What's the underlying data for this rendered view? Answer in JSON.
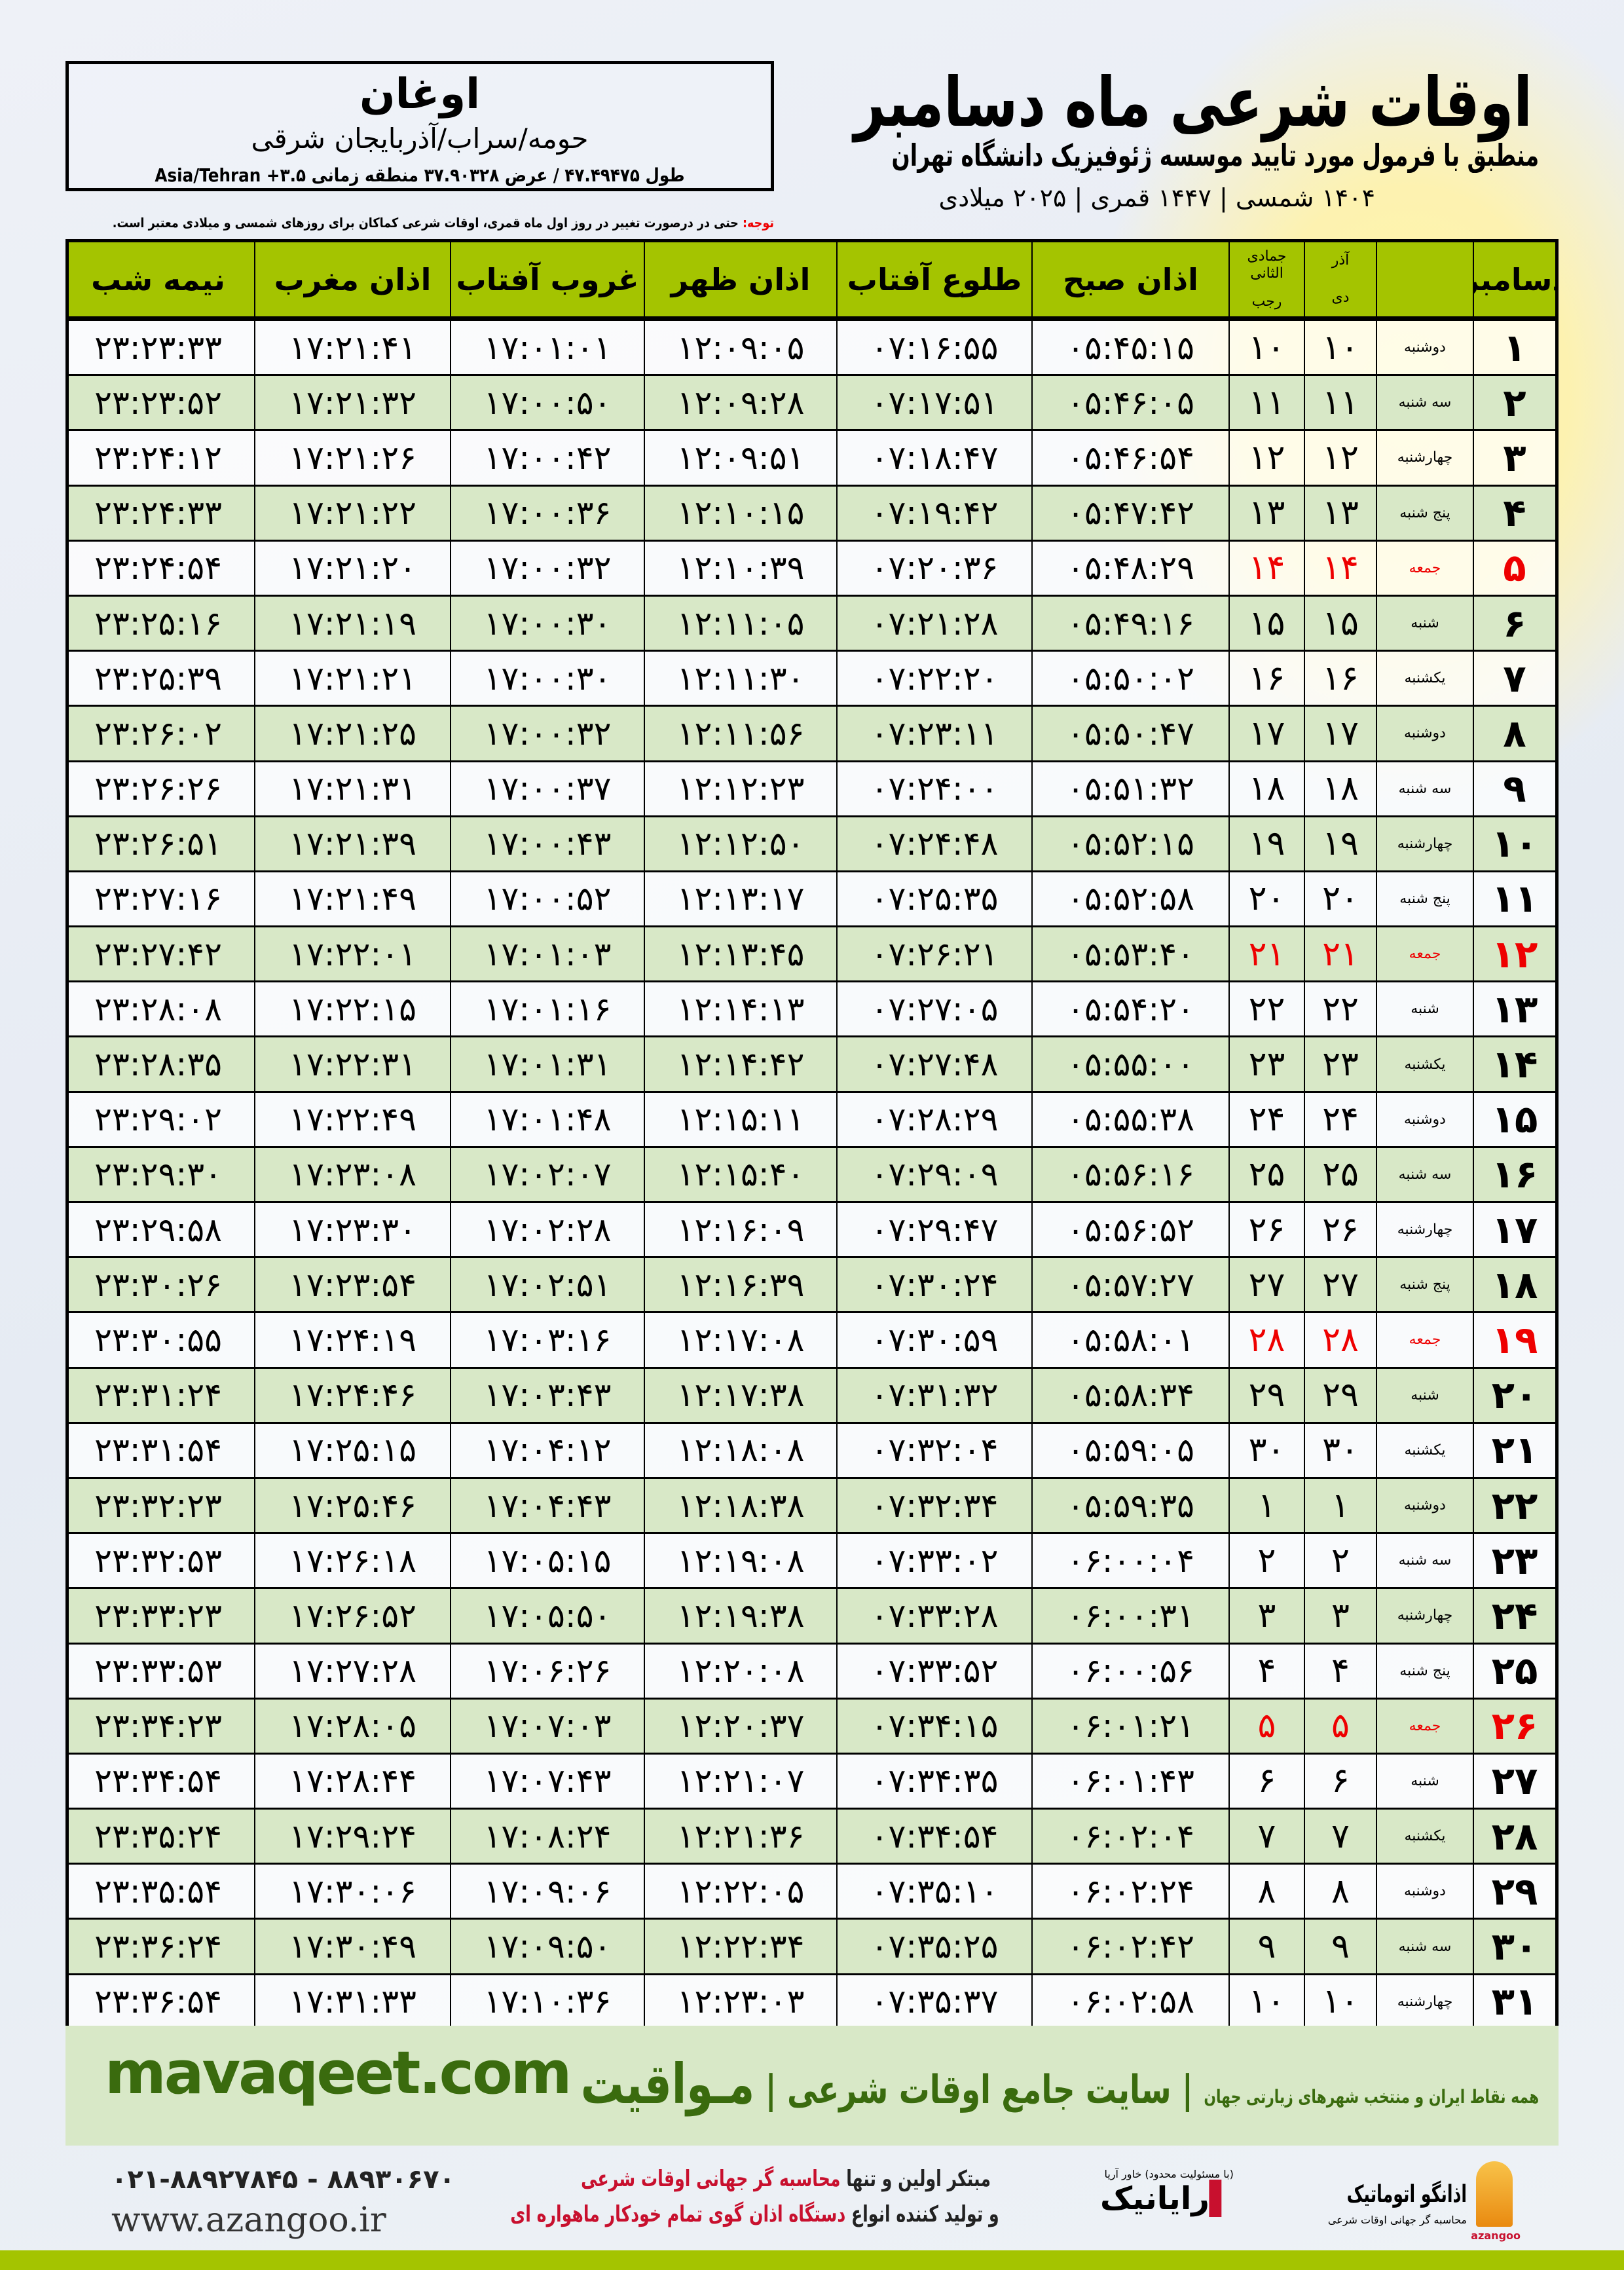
{
  "location": {
    "name": "اوغان",
    "region": "حومه/سراب/آذربایجان شرقی",
    "coords": "طول ۴۷.۴۹۴۷۵ / عرض ۳۷.۹۰۳۲۸ منطقه زمانی Asia/Tehran +۳.۵"
  },
  "header": {
    "title": "اوقات شرعی ماه دسامبر",
    "subtitle": "منطبق با فرمول مورد تایید موسسه ژئوفیزیک دانشگاه تهران",
    "dates": "۱۴۰۴ شمسی | ۱۴۴۷ قمری | ۲۰۲۵ میلادی",
    "note_label": "توجه:",
    "note": " حتی در درصورت تغییر در روز اول ماه قمری، اوقات شرعی کماکان برای روزهای شمسی و میلادی معتبر است."
  },
  "colors": {
    "header_green": "#a4c400",
    "row_green": "#d8e8c7",
    "friday": "#e00000",
    "brand_green": "#3a6b0e"
  },
  "table": {
    "columns": {
      "day": "دسامبر",
      "solar_top": "آذر",
      "solar_bottom": "دی",
      "lunar_top": "جمادی الثانی",
      "lunar_bottom": "رجب",
      "fajr": "اذان صبح",
      "sunrise": "طلوع آفتاب",
      "dhuhr": "اذان ظهر",
      "sunset": "غروب آفتاب",
      "maghrib": "اذان مغرب",
      "midnight": "نیمه شب"
    },
    "rows": [
      {
        "day": "۱",
        "weekday": "دوشنبه",
        "solar": "۱۰",
        "lunar": "۱۰",
        "fajr": "۰۵:۴۵:۱۵",
        "sunrise": "۰۷:۱۶:۵۵",
        "dhuhr": "۱۲:۰۹:۰۵",
        "sunset": "۱۷:۰۱:۰۱",
        "maghrib": "۱۷:۲۱:۴۱",
        "midnight": "۲۳:۲۳:۳۳"
      },
      {
        "day": "۲",
        "weekday": "سه شنبه",
        "solar": "۱۱",
        "lunar": "۱۱",
        "fajr": "۰۵:۴۶:۰۵",
        "sunrise": "۰۷:۱۷:۵۱",
        "dhuhr": "۱۲:۰۹:۲۸",
        "sunset": "۱۷:۰۰:۵۰",
        "maghrib": "۱۷:۲۱:۳۲",
        "midnight": "۲۳:۲۳:۵۲"
      },
      {
        "day": "۳",
        "weekday": "چهارشنبه",
        "solar": "۱۲",
        "lunar": "۱۲",
        "fajr": "۰۵:۴۶:۵۴",
        "sunrise": "۰۷:۱۸:۴۷",
        "dhuhr": "۱۲:۰۹:۵۱",
        "sunset": "۱۷:۰۰:۴۲",
        "maghrib": "۱۷:۲۱:۲۶",
        "midnight": "۲۳:۲۴:۱۲"
      },
      {
        "day": "۴",
        "weekday": "پنج شنبه",
        "solar": "۱۳",
        "lunar": "۱۳",
        "fajr": "۰۵:۴۷:۴۲",
        "sunrise": "۰۷:۱۹:۴۲",
        "dhuhr": "۱۲:۱۰:۱۵",
        "sunset": "۱۷:۰۰:۳۶",
        "maghrib": "۱۷:۲۱:۲۲",
        "midnight": "۲۳:۲۴:۳۳"
      },
      {
        "day": "۵",
        "weekday": "جمعه",
        "solar": "۱۴",
        "lunar": "۱۴",
        "fajr": "۰۵:۴۸:۲۹",
        "sunrise": "۰۷:۲۰:۳۶",
        "dhuhr": "۱۲:۱۰:۳۹",
        "sunset": "۱۷:۰۰:۳۲",
        "maghrib": "۱۷:۲۱:۲۰",
        "midnight": "۲۳:۲۴:۵۴",
        "friday": true
      },
      {
        "day": "۶",
        "weekday": "شنبه",
        "solar": "۱۵",
        "lunar": "۱۵",
        "fajr": "۰۵:۴۹:۱۶",
        "sunrise": "۰۷:۲۱:۲۸",
        "dhuhr": "۱۲:۱۱:۰۵",
        "sunset": "۱۷:۰۰:۳۰",
        "maghrib": "۱۷:۲۱:۱۹",
        "midnight": "۲۳:۲۵:۱۶"
      },
      {
        "day": "۷",
        "weekday": "یکشنبه",
        "solar": "۱۶",
        "lunar": "۱۶",
        "fajr": "۰۵:۵۰:۰۲",
        "sunrise": "۰۷:۲۲:۲۰",
        "dhuhr": "۱۲:۱۱:۳۰",
        "sunset": "۱۷:۰۰:۳۰",
        "maghrib": "۱۷:۲۱:۲۱",
        "midnight": "۲۳:۲۵:۳۹"
      },
      {
        "day": "۸",
        "weekday": "دوشنبه",
        "solar": "۱۷",
        "lunar": "۱۷",
        "fajr": "۰۵:۵۰:۴۷",
        "sunrise": "۰۷:۲۳:۱۱",
        "dhuhr": "۱۲:۱۱:۵۶",
        "sunset": "۱۷:۰۰:۳۲",
        "maghrib": "۱۷:۲۱:۲۵",
        "midnight": "۲۳:۲۶:۰۲"
      },
      {
        "day": "۹",
        "weekday": "سه شنبه",
        "solar": "۱۸",
        "lunar": "۱۸",
        "fajr": "۰۵:۵۱:۳۲",
        "sunrise": "۰۷:۲۴:۰۰",
        "dhuhr": "۱۲:۱۲:۲۳",
        "sunset": "۱۷:۰۰:۳۷",
        "maghrib": "۱۷:۲۱:۳۱",
        "midnight": "۲۳:۲۶:۲۶"
      },
      {
        "day": "۱۰",
        "weekday": "چهارشنبه",
        "solar": "۱۹",
        "lunar": "۱۹",
        "fajr": "۰۵:۵۲:۱۵",
        "sunrise": "۰۷:۲۴:۴۸",
        "dhuhr": "۱۲:۱۲:۵۰",
        "sunset": "۱۷:۰۰:۴۳",
        "maghrib": "۱۷:۲۱:۳۹",
        "midnight": "۲۳:۲۶:۵۱"
      },
      {
        "day": "۱۱",
        "weekday": "پنج شنبه",
        "solar": "۲۰",
        "lunar": "۲۰",
        "fajr": "۰۵:۵۲:۵۸",
        "sunrise": "۰۷:۲۵:۳۵",
        "dhuhr": "۱۲:۱۳:۱۷",
        "sunset": "۱۷:۰۰:۵۲",
        "maghrib": "۱۷:۲۱:۴۹",
        "midnight": "۲۳:۲۷:۱۶"
      },
      {
        "day": "۱۲",
        "weekday": "جمعه",
        "solar": "۲۱",
        "lunar": "۲۱",
        "fajr": "۰۵:۵۳:۴۰",
        "sunrise": "۰۷:۲۶:۲۱",
        "dhuhr": "۱۲:۱۳:۴۵",
        "sunset": "۱۷:۰۱:۰۳",
        "maghrib": "۱۷:۲۲:۰۱",
        "midnight": "۲۳:۲۷:۴۲",
        "friday": true
      },
      {
        "day": "۱۳",
        "weekday": "شنبه",
        "solar": "۲۲",
        "lunar": "۲۲",
        "fajr": "۰۵:۵۴:۲۰",
        "sunrise": "۰۷:۲۷:۰۵",
        "dhuhr": "۱۲:۱۴:۱۳",
        "sunset": "۱۷:۰۱:۱۶",
        "maghrib": "۱۷:۲۲:۱۵",
        "midnight": "۲۳:۲۸:۰۸"
      },
      {
        "day": "۱۴",
        "weekday": "یکشنبه",
        "solar": "۲۳",
        "lunar": "۲۳",
        "fajr": "۰۵:۵۵:۰۰",
        "sunrise": "۰۷:۲۷:۴۸",
        "dhuhr": "۱۲:۱۴:۴۲",
        "sunset": "۱۷:۰۱:۳۱",
        "maghrib": "۱۷:۲۲:۳۱",
        "midnight": "۲۳:۲۸:۳۵"
      },
      {
        "day": "۱۵",
        "weekday": "دوشنبه",
        "solar": "۲۴",
        "lunar": "۲۴",
        "fajr": "۰۵:۵۵:۳۸",
        "sunrise": "۰۷:۲۸:۲۹",
        "dhuhr": "۱۲:۱۵:۱۱",
        "sunset": "۱۷:۰۱:۴۸",
        "maghrib": "۱۷:۲۲:۴۹",
        "midnight": "۲۳:۲۹:۰۲"
      },
      {
        "day": "۱۶",
        "weekday": "سه شنبه",
        "solar": "۲۵",
        "lunar": "۲۵",
        "fajr": "۰۵:۵۶:۱۶",
        "sunrise": "۰۷:۲۹:۰۹",
        "dhuhr": "۱۲:۱۵:۴۰",
        "sunset": "۱۷:۰۲:۰۷",
        "maghrib": "۱۷:۲۳:۰۸",
        "midnight": "۲۳:۲۹:۳۰"
      },
      {
        "day": "۱۷",
        "weekday": "چهارشنبه",
        "solar": "۲۶",
        "lunar": "۲۶",
        "fajr": "۰۵:۵۶:۵۲",
        "sunrise": "۰۷:۲۹:۴۷",
        "dhuhr": "۱۲:۱۶:۰۹",
        "sunset": "۱۷:۰۲:۲۸",
        "maghrib": "۱۷:۲۳:۳۰",
        "midnight": "۲۳:۲۹:۵۸"
      },
      {
        "day": "۱۸",
        "weekday": "پنج شنبه",
        "solar": "۲۷",
        "lunar": "۲۷",
        "fajr": "۰۵:۵۷:۲۷",
        "sunrise": "۰۷:۳۰:۲۴",
        "dhuhr": "۱۲:۱۶:۳۹",
        "sunset": "۱۷:۰۲:۵۱",
        "maghrib": "۱۷:۲۳:۵۴",
        "midnight": "۲۳:۳۰:۲۶"
      },
      {
        "day": "۱۹",
        "weekday": "جمعه",
        "solar": "۲۸",
        "lunar": "۲۸",
        "fajr": "۰۵:۵۸:۰۱",
        "sunrise": "۰۷:۳۰:۵۹",
        "dhuhr": "۱۲:۱۷:۰۸",
        "sunset": "۱۷:۰۳:۱۶",
        "maghrib": "۱۷:۲۴:۱۹",
        "midnight": "۲۳:۳۰:۵۵",
        "friday": true
      },
      {
        "day": "۲۰",
        "weekday": "شنبه",
        "solar": "۲۹",
        "lunar": "۲۹",
        "fajr": "۰۵:۵۸:۳۴",
        "sunrise": "۰۷:۳۱:۳۲",
        "dhuhr": "۱۲:۱۷:۳۸",
        "sunset": "۱۷:۰۳:۴۳",
        "maghrib": "۱۷:۲۴:۴۶",
        "midnight": "۲۳:۳۱:۲۴"
      },
      {
        "day": "۲۱",
        "weekday": "یکشنبه",
        "solar": "۳۰",
        "lunar": "۳۰",
        "fajr": "۰۵:۵۹:۰۵",
        "sunrise": "۰۷:۳۲:۰۴",
        "dhuhr": "۱۲:۱۸:۰۸",
        "sunset": "۱۷:۰۴:۱۲",
        "maghrib": "۱۷:۲۵:۱۵",
        "midnight": "۲۳:۳۱:۵۴"
      },
      {
        "day": "۲۲",
        "weekday": "دوشنبه",
        "solar": "۱",
        "lunar": "۱",
        "fajr": "۰۵:۵۹:۳۵",
        "sunrise": "۰۷:۳۲:۳۴",
        "dhuhr": "۱۲:۱۸:۳۸",
        "sunset": "۱۷:۰۴:۴۳",
        "maghrib": "۱۷:۲۵:۴۶",
        "midnight": "۲۳:۳۲:۲۳"
      },
      {
        "day": "۲۳",
        "weekday": "سه شنبه",
        "solar": "۲",
        "lunar": "۲",
        "fajr": "۰۶:۰۰:۰۴",
        "sunrise": "۰۷:۳۳:۰۲",
        "dhuhr": "۱۲:۱۹:۰۸",
        "sunset": "۱۷:۰۵:۱۵",
        "maghrib": "۱۷:۲۶:۱۸",
        "midnight": "۲۳:۳۲:۵۳"
      },
      {
        "day": "۲۴",
        "weekday": "چهارشنبه",
        "solar": "۳",
        "lunar": "۳",
        "fajr": "۰۶:۰۰:۳۱",
        "sunrise": "۰۷:۳۳:۲۸",
        "dhuhr": "۱۲:۱۹:۳۸",
        "sunset": "۱۷:۰۵:۵۰",
        "maghrib": "۱۷:۲۶:۵۲",
        "midnight": "۲۳:۳۳:۲۳"
      },
      {
        "day": "۲۵",
        "weekday": "پنج شنبه",
        "solar": "۴",
        "lunar": "۴",
        "fajr": "۰۶:۰۰:۵۶",
        "sunrise": "۰۷:۳۳:۵۲",
        "dhuhr": "۱۲:۲۰:۰۸",
        "sunset": "۱۷:۰۶:۲۶",
        "maghrib": "۱۷:۲۷:۲۸",
        "midnight": "۲۳:۳۳:۵۳"
      },
      {
        "day": "۲۶",
        "weekday": "جمعه",
        "solar": "۵",
        "lunar": "۵",
        "fajr": "۰۶:۰۱:۲۱",
        "sunrise": "۰۷:۳۴:۱۵",
        "dhuhr": "۱۲:۲۰:۳۷",
        "sunset": "۱۷:۰۷:۰۳",
        "maghrib": "۱۷:۲۸:۰۵",
        "midnight": "۲۳:۳۴:۲۳",
        "friday": true
      },
      {
        "day": "۲۷",
        "weekday": "شنبه",
        "solar": "۶",
        "lunar": "۶",
        "fajr": "۰۶:۰۱:۴۳",
        "sunrise": "۰۷:۳۴:۳۵",
        "dhuhr": "۱۲:۲۱:۰۷",
        "sunset": "۱۷:۰۷:۴۳",
        "maghrib": "۱۷:۲۸:۴۴",
        "midnight": "۲۳:۳۴:۵۴"
      },
      {
        "day": "۲۸",
        "weekday": "یکشنبه",
        "solar": "۷",
        "lunar": "۷",
        "fajr": "۰۶:۰۲:۰۴",
        "sunrise": "۰۷:۳۴:۵۴",
        "dhuhr": "۱۲:۲۱:۳۶",
        "sunset": "۱۷:۰۸:۲۴",
        "maghrib": "۱۷:۲۹:۲۴",
        "midnight": "۲۳:۳۵:۲۴"
      },
      {
        "day": "۲۹",
        "weekday": "دوشنبه",
        "solar": "۸",
        "lunar": "۸",
        "fajr": "۰۶:۰۲:۲۴",
        "sunrise": "۰۷:۳۵:۱۰",
        "dhuhr": "۱۲:۲۲:۰۵",
        "sunset": "۱۷:۰۹:۰۶",
        "maghrib": "۱۷:۳۰:۰۶",
        "midnight": "۲۳:۳۵:۵۴"
      },
      {
        "day": "۳۰",
        "weekday": "سه شنبه",
        "solar": "۹",
        "lunar": "۹",
        "fajr": "۰۶:۰۲:۴۲",
        "sunrise": "۰۷:۳۵:۲۵",
        "dhuhr": "۱۲:۲۲:۳۴",
        "sunset": "۱۷:۰۹:۵۰",
        "maghrib": "۱۷:۳۰:۴۹",
        "midnight": "۲۳:۳۶:۲۴"
      },
      {
        "day": "۳۱",
        "weekday": "چهارشنبه",
        "solar": "۱۰",
        "lunar": "۱۰",
        "fajr": "۰۶:۰۲:۵۸",
        "sunrise": "۰۷:۳۵:۳۷",
        "dhuhr": "۱۲:۲۳:۰۳",
        "sunset": "۱۷:۱۰:۳۶",
        "maghrib": "۱۷:۳۱:۳۳",
        "midnight": "۲۳:۳۶:۵۴"
      }
    ]
  },
  "footer": {
    "site": "mavaqeet.com",
    "brand": "مـواقیت",
    "tagline": "سایت جامع اوقات شرعی",
    "tagline_sub": "همه نقاط ایران و منتخب شهرهای زیارتی جهان",
    "phones": "۰۲۱-۸۸۹۲۷۸۴۵ - ۸۸۹۳۰۶۷۰",
    "www": "www.azangoo.ir",
    "slogan1_a": "مبتکر اولین و تنها ",
    "slogan1_b": "محاسبه گر جهانی اوقات شرعی",
    "slogan2_a": "و تولید کننده انواع ",
    "slogan2_b": "دستگاه اذان گوی تمام خودکار ماهواره ای",
    "logo_rayanik": "رایانیک",
    "logo_rayanik_sub": "(با مسئولیت محدود) خاور آریا",
    "logo_azangoo": "اذانگو اتوماتیک",
    "logo_azangoo_sub": "محاسبه گر جهانی اوقات شرعی",
    "logo_azangoo_en": "azangoo"
  }
}
